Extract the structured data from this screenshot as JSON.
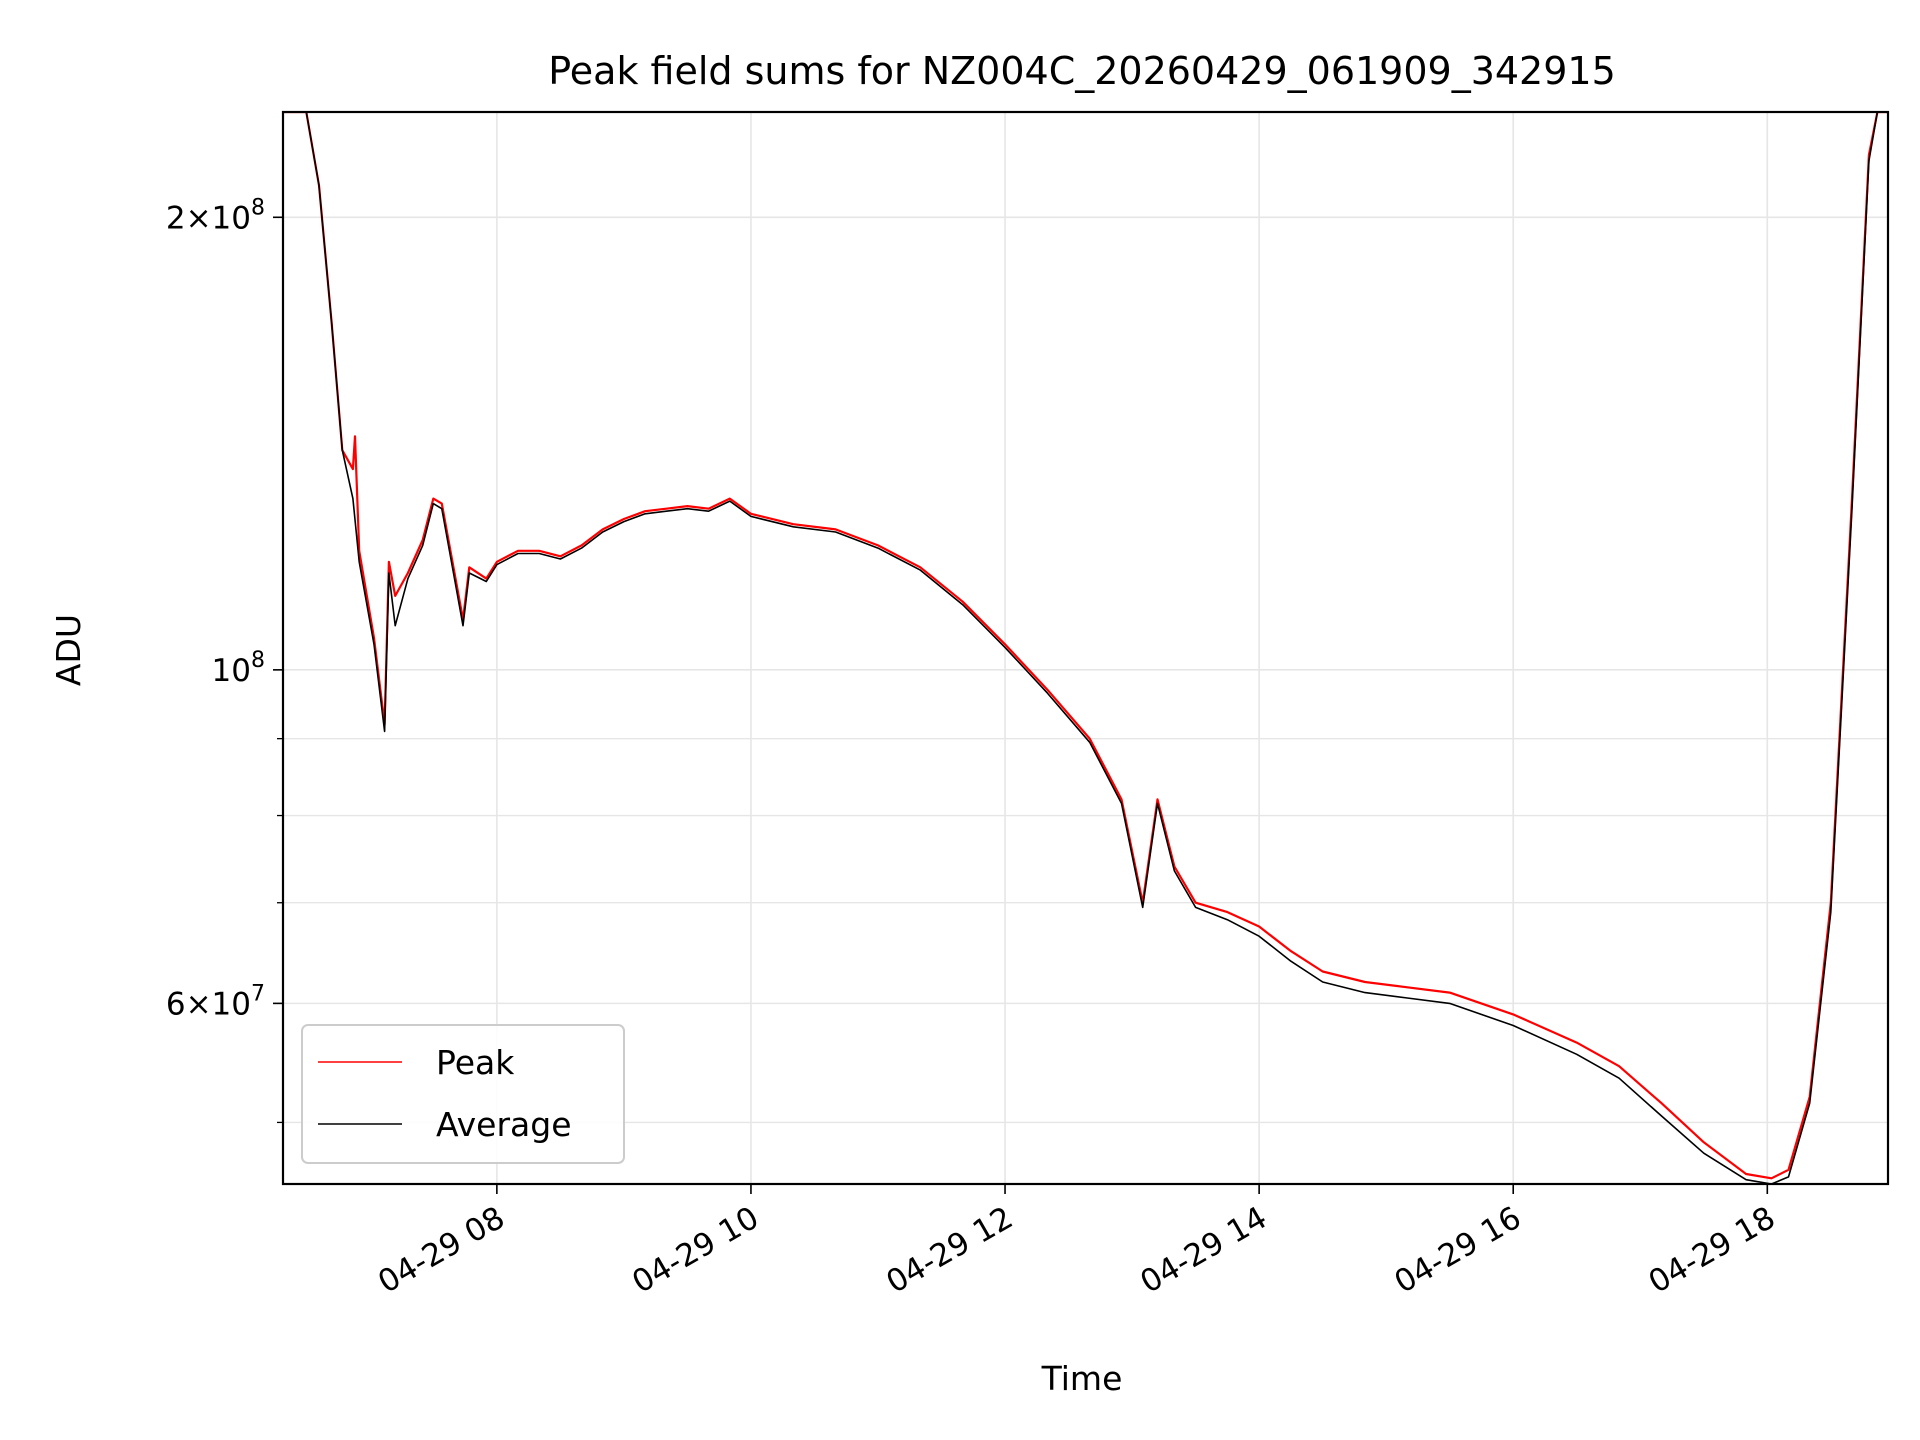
{
  "chart_data": {
    "type": "line",
    "title": "Peak field sums for NZ004C_20260429_061909_342915",
    "xlabel": "Time",
    "ylabel": "ADU",
    "y_scale": "log",
    "grid": true,
    "legend_position": "bottom-left",
    "xlim": [
      "2026-04-29 06:19",
      "2026-04-29 18:57"
    ],
    "ylim": [
      45500000,
      235000000
    ],
    "x_ticks": [
      {
        "label": "04-29 08",
        "x": "2026-04-29 08:00"
      },
      {
        "label": "04-29 10",
        "x": "2026-04-29 10:00"
      },
      {
        "label": "04-29 12",
        "x": "2026-04-29 12:00"
      },
      {
        "label": "04-29 14",
        "x": "2026-04-29 14:00"
      },
      {
        "label": "04-29 16",
        "x": "2026-04-29 16:00"
      },
      {
        "label": "04-29 18",
        "x": "2026-04-29 18:00"
      }
    ],
    "y_ticks": [
      {
        "base": "2",
        "exp": "8",
        "value": 200000000,
        "sci": true
      },
      {
        "base": "10",
        "exp": "8",
        "value": 100000000,
        "sci": false
      },
      {
        "base": "6",
        "exp": "7",
        "value": 60000000,
        "sci": true
      }
    ],
    "y_minor_ticks": [
      50000000,
      70000000,
      80000000,
      90000000
    ],
    "series": [
      {
        "name": "Peak",
        "color": "#ff0000",
        "points": [
          [
            "06:19",
            235000000
          ],
          [
            "06:30",
            235000000
          ],
          [
            "06:36",
            210000000
          ],
          [
            "06:42",
            170000000
          ],
          [
            "06:47",
            140000000
          ],
          [
            "06:52",
            136000000
          ],
          [
            "06:53",
            143000000
          ],
          [
            "06:55",
            120000000
          ],
          [
            "07:02",
            105000000
          ],
          [
            "07:07",
            92000000
          ],
          [
            "07:09",
            118000000
          ],
          [
            "07:12",
            112000000
          ],
          [
            "07:18",
            116000000
          ],
          [
            "07:25",
            122000000
          ],
          [
            "07:30",
            130000000
          ],
          [
            "07:34",
            129000000
          ],
          [
            "07:40",
            116000000
          ],
          [
            "07:44",
            108000000
          ],
          [
            "07:47",
            117000000
          ],
          [
            "07:55",
            115000000
          ],
          [
            "08:00",
            118000000
          ],
          [
            "08:10",
            120000000
          ],
          [
            "08:20",
            120000000
          ],
          [
            "08:30",
            119000000
          ],
          [
            "08:40",
            121000000
          ],
          [
            "08:50",
            124000000
          ],
          [
            "09:00",
            126000000
          ],
          [
            "09:10",
            127500000
          ],
          [
            "09:20",
            128000000
          ],
          [
            "09:30",
            128500000
          ],
          [
            "09:40",
            128000000
          ],
          [
            "09:50",
            130000000
          ],
          [
            "10:00",
            127000000
          ],
          [
            "10:20",
            125000000
          ],
          [
            "10:40",
            124000000
          ],
          [
            "11:00",
            121000000
          ],
          [
            "11:20",
            117000000
          ],
          [
            "11:40",
            111000000
          ],
          [
            "12:00",
            104000000
          ],
          [
            "12:20",
            97000000
          ],
          [
            "12:40",
            90000000
          ],
          [
            "12:55",
            82000000
          ],
          [
            "13:05",
            70000000
          ],
          [
            "13:12",
            82000000
          ],
          [
            "13:20",
            74000000
          ],
          [
            "13:30",
            70000000
          ],
          [
            "13:45",
            69000000
          ],
          [
            "14:00",
            67500000
          ],
          [
            "14:15",
            65000000
          ],
          [
            "14:30",
            63000000
          ],
          [
            "14:50",
            62000000
          ],
          [
            "15:10",
            61500000
          ],
          [
            "15:30",
            61000000
          ],
          [
            "16:00",
            59000000
          ],
          [
            "16:30",
            56500000
          ],
          [
            "16:50",
            54500000
          ],
          [
            "17:10",
            51500000
          ],
          [
            "17:30",
            48500000
          ],
          [
            "17:50",
            46200000
          ],
          [
            "18:02",
            45900000
          ],
          [
            "18:10",
            46500000
          ],
          [
            "18:20",
            52000000
          ],
          [
            "18:30",
            70000000
          ],
          [
            "18:40",
            130000000
          ],
          [
            "18:48",
            220000000
          ],
          [
            "18:52",
            235000000
          ],
          [
            "18:57",
            235000000
          ]
        ]
      },
      {
        "name": "Average",
        "color": "#000000",
        "points": [
          [
            "06:19",
            235000000
          ],
          [
            "06:30",
            235000000
          ],
          [
            "06:36",
            210000000
          ],
          [
            "06:42",
            170000000
          ],
          [
            "06:47",
            140000000
          ],
          [
            "06:52",
            130000000
          ],
          [
            "06:55",
            118000000
          ],
          [
            "07:02",
            104000000
          ],
          [
            "07:07",
            91000000
          ],
          [
            "07:09",
            116000000
          ],
          [
            "07:12",
            107000000
          ],
          [
            "07:18",
            115000000
          ],
          [
            "07:25",
            121000000
          ],
          [
            "07:30",
            129000000
          ],
          [
            "07:34",
            128000000
          ],
          [
            "07:40",
            115000000
          ],
          [
            "07:44",
            107000000
          ],
          [
            "07:47",
            116000000
          ],
          [
            "07:55",
            114500000
          ],
          [
            "08:00",
            117500000
          ],
          [
            "08:10",
            119500000
          ],
          [
            "08:20",
            119500000
          ],
          [
            "08:30",
            118500000
          ],
          [
            "08:40",
            120500000
          ],
          [
            "08:50",
            123500000
          ],
          [
            "09:00",
            125500000
          ],
          [
            "09:10",
            127000000
          ],
          [
            "09:20",
            127500000
          ],
          [
            "09:30",
            128000000
          ],
          [
            "09:40",
            127500000
          ],
          [
            "09:50",
            129500000
          ],
          [
            "10:00",
            126500000
          ],
          [
            "10:20",
            124500000
          ],
          [
            "10:40",
            123500000
          ],
          [
            "11:00",
            120500000
          ],
          [
            "11:20",
            116500000
          ],
          [
            "11:40",
            110500000
          ],
          [
            "12:00",
            103500000
          ],
          [
            "12:20",
            96500000
          ],
          [
            "12:40",
            89500000
          ],
          [
            "12:55",
            81500000
          ],
          [
            "13:05",
            69500000
          ],
          [
            "13:12",
            81500000
          ],
          [
            "13:20",
            73500000
          ],
          [
            "13:30",
            69500000
          ],
          [
            "13:45",
            68200000
          ],
          [
            "14:00",
            66500000
          ],
          [
            "14:15",
            64000000
          ],
          [
            "14:30",
            62000000
          ],
          [
            "14:50",
            61000000
          ],
          [
            "15:10",
            60500000
          ],
          [
            "15:30",
            60000000
          ],
          [
            "16:00",
            58000000
          ],
          [
            "16:30",
            55500000
          ],
          [
            "16:50",
            53500000
          ],
          [
            "17:10",
            50500000
          ],
          [
            "17:30",
            47700000
          ],
          [
            "17:50",
            45800000
          ],
          [
            "18:02",
            45500000
          ],
          [
            "18:10",
            46000000
          ],
          [
            "18:20",
            51500000
          ],
          [
            "18:30",
            69000000
          ],
          [
            "18:40",
            128000000
          ],
          [
            "18:48",
            218000000
          ],
          [
            "18:52",
            235000000
          ],
          [
            "18:57",
            235000000
          ]
        ]
      }
    ]
  }
}
